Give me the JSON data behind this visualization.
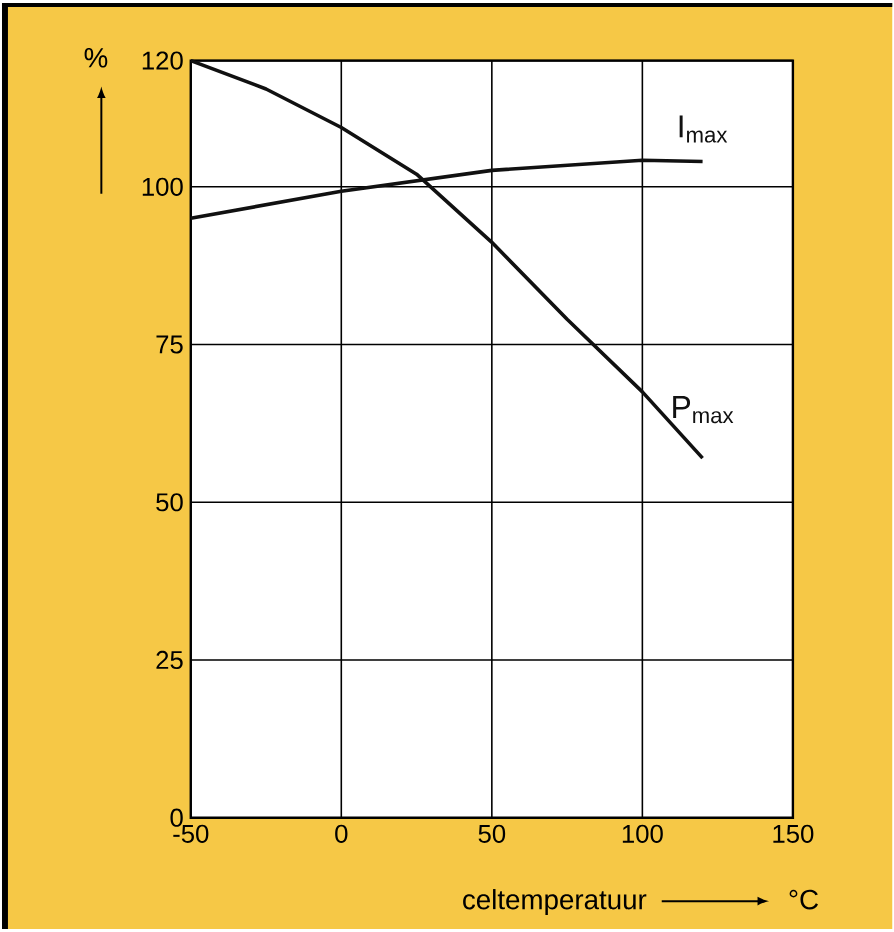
{
  "chart_data": {
    "type": "line",
    "ylabel": "%",
    "xlabel": "celtemperatuur",
    "annotations": [
      "°C"
    ],
    "xlim": [
      -50,
      150
    ],
    "xticks": [
      -50,
      0,
      50,
      100,
      150
    ],
    "ylim": [
      0,
      120
    ],
    "yticks": [
      0,
      25,
      50,
      75,
      100,
      120
    ],
    "grid": true,
    "series": [
      {
        "name": "I$_{max}$",
        "color": "#111111",
        "x": [
          -50,
          0,
          50,
          100,
          120
        ],
        "values": [
          95,
          99.3,
          102.6,
          104.2,
          104
        ]
      },
      {
        "name": "P$_{max}$",
        "color": "#111111",
        "x": [
          -50,
          -25,
          0,
          25,
          50,
          75,
          100,
          120
        ],
        "values": [
          120,
          115.5,
          109.4,
          102,
          91.2,
          79,
          67.5,
          57
        ]
      }
    ]
  }
}
